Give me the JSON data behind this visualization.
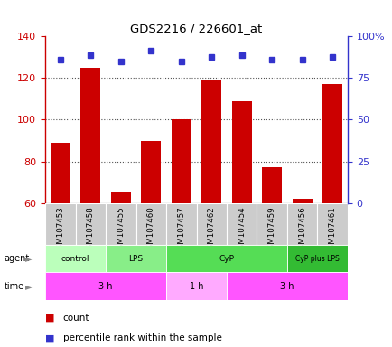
{
  "title": "GDS2216 / 226601_at",
  "samples": [
    "GSM107453",
    "GSM107458",
    "GSM107455",
    "GSM107460",
    "GSM107457",
    "GSM107462",
    "GSM107454",
    "GSM107459",
    "GSM107456",
    "GSM107461"
  ],
  "counts": [
    89,
    125,
    65,
    90,
    100,
    119,
    109,
    77,
    62,
    117
  ],
  "percentile_y": [
    129,
    131,
    128,
    133,
    128,
    130,
    131,
    129,
    129,
    130
  ],
  "ylim": [
    60,
    140
  ],
  "yticks": [
    60,
    80,
    100,
    120,
    140
  ],
  "bar_color": "#cc0000",
  "dot_color": "#3333cc",
  "grid_color": "#555555",
  "agent_groups": [
    {
      "label": "control",
      "start": 0,
      "end": 2,
      "color": "#bbffbb"
    },
    {
      "label": "LPS",
      "start": 2,
      "end": 4,
      "color": "#88ee88"
    },
    {
      "label": "CyP",
      "start": 4,
      "end": 8,
      "color": "#55dd55"
    },
    {
      "label": "CyP plus LPS",
      "start": 8,
      "end": 10,
      "color": "#33bb33"
    }
  ],
  "time_groups": [
    {
      "label": "3 h",
      "start": 0,
      "end": 4,
      "color": "#ff55ff"
    },
    {
      "label": "1 h",
      "start": 4,
      "end": 6,
      "color": "#ffaaff"
    },
    {
      "label": "3 h",
      "start": 6,
      "end": 10,
      "color": "#ff55ff"
    }
  ],
  "left_axis_color": "#cc0000",
  "right_axis_color": "#3333cc",
  "sample_bg_color": "#cccccc",
  "sample_border_color": "#ffffff"
}
